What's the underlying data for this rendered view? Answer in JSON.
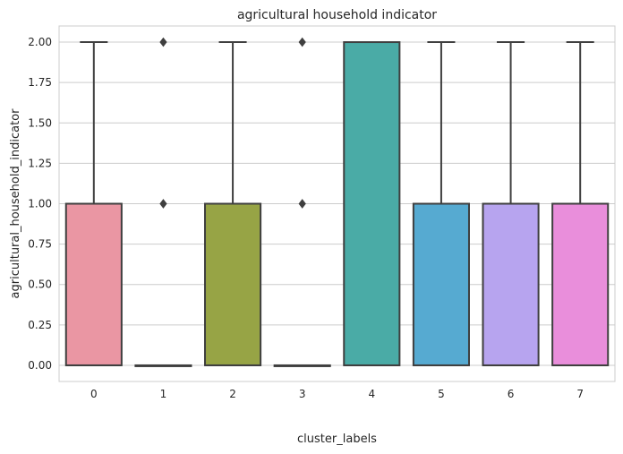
{
  "chart_data": {
    "type": "box",
    "title": "agricultural household indicator",
    "xlabel": "cluster_labels",
    "ylabel": "agricultural_household_indicator",
    "ylim": [
      -0.1,
      2.1
    ],
    "yticks": [
      "0.00",
      "0.25",
      "0.50",
      "0.75",
      "1.00",
      "1.25",
      "1.50",
      "1.75",
      "2.00"
    ],
    "grid": true,
    "categories": [
      "0",
      "1",
      "2",
      "3",
      "4",
      "5",
      "6",
      "7"
    ],
    "boxes": [
      {
        "label": "0",
        "whisker_low": 0,
        "q1": 0,
        "median": 0,
        "q3": 1,
        "whisker_high": 2,
        "outliers": [],
        "color": "#ea96a3"
      },
      {
        "label": "1",
        "whisker_low": 0,
        "q1": 0,
        "median": 0,
        "q3": 0,
        "whisker_high": 0,
        "outliers": [
          1,
          2
        ],
        "color": "#d8a05a"
      },
      {
        "label": "2",
        "whisker_low": 0,
        "q1": 0,
        "median": 0,
        "q3": 1,
        "whisker_high": 2,
        "outliers": [],
        "color": "#97a445"
      },
      {
        "label": "3",
        "whisker_low": 0,
        "q1": 0,
        "median": 0,
        "q3": 0,
        "whisker_high": 0,
        "outliers": [
          1,
          2
        ],
        "color": "#55ad78"
      },
      {
        "label": "4",
        "whisker_low": 0,
        "q1": 0,
        "median": 0,
        "q3": 2,
        "whisker_high": 2,
        "outliers": [],
        "color": "#4aaba6"
      },
      {
        "label": "5",
        "whisker_low": 0,
        "q1": 0,
        "median": 0,
        "q3": 1,
        "whisker_high": 2,
        "outliers": [],
        "color": "#56aad1"
      },
      {
        "label": "6",
        "whisker_low": 0,
        "q1": 0,
        "median": 0,
        "q3": 1,
        "whisker_high": 2,
        "outliers": [],
        "color": "#b7a4ef"
      },
      {
        "label": "7",
        "whisker_low": 0,
        "q1": 0,
        "median": 0,
        "q3": 1,
        "whisker_high": 2,
        "outliers": [],
        "color": "#e98edb"
      }
    ]
  }
}
